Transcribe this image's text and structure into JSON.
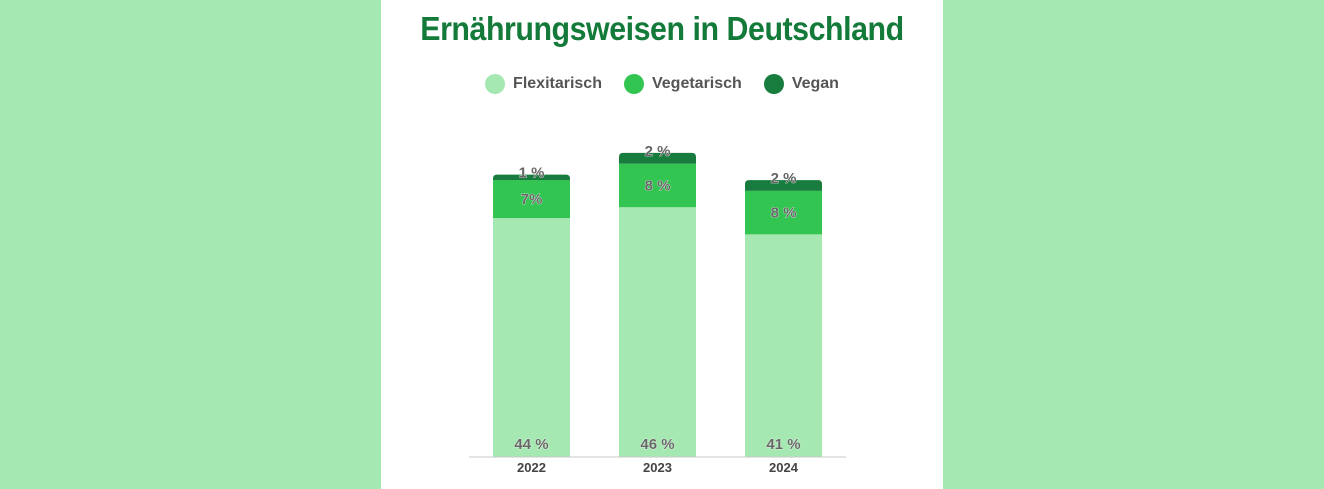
{
  "colors": {
    "background": "#a5e8b1",
    "panel": "#ffffff",
    "title": "#137a3a",
    "flexitarisch": "#a5e8b1",
    "vegetarisch": "#33c551",
    "vegan": "#177c3e"
  },
  "chart_data": {
    "type": "bar",
    "stacked": true,
    "title": "Ernährungsweisen in Deutschland",
    "xlabel": "",
    "ylabel": "",
    "categories": [
      "2022",
      "2023",
      "2024"
    ],
    "series": [
      {
        "name": "Flexitarisch",
        "color": "#a5e8b1",
        "values": [
          44,
          46,
          41
        ],
        "labels": [
          "44 %",
          "46 %",
          "41 %"
        ]
      },
      {
        "name": "Vegetarisch",
        "color": "#33c551",
        "values": [
          7,
          8,
          8
        ],
        "labels": [
          "7%",
          "8 %",
          "8 %"
        ]
      },
      {
        "name": "Vegan",
        "color": "#177c3e",
        "values": [
          1,
          2,
          2
        ],
        "labels": [
          "1 %",
          "2 %",
          "2 %"
        ]
      }
    ],
    "legend_position": "top-center",
    "grid": false
  }
}
